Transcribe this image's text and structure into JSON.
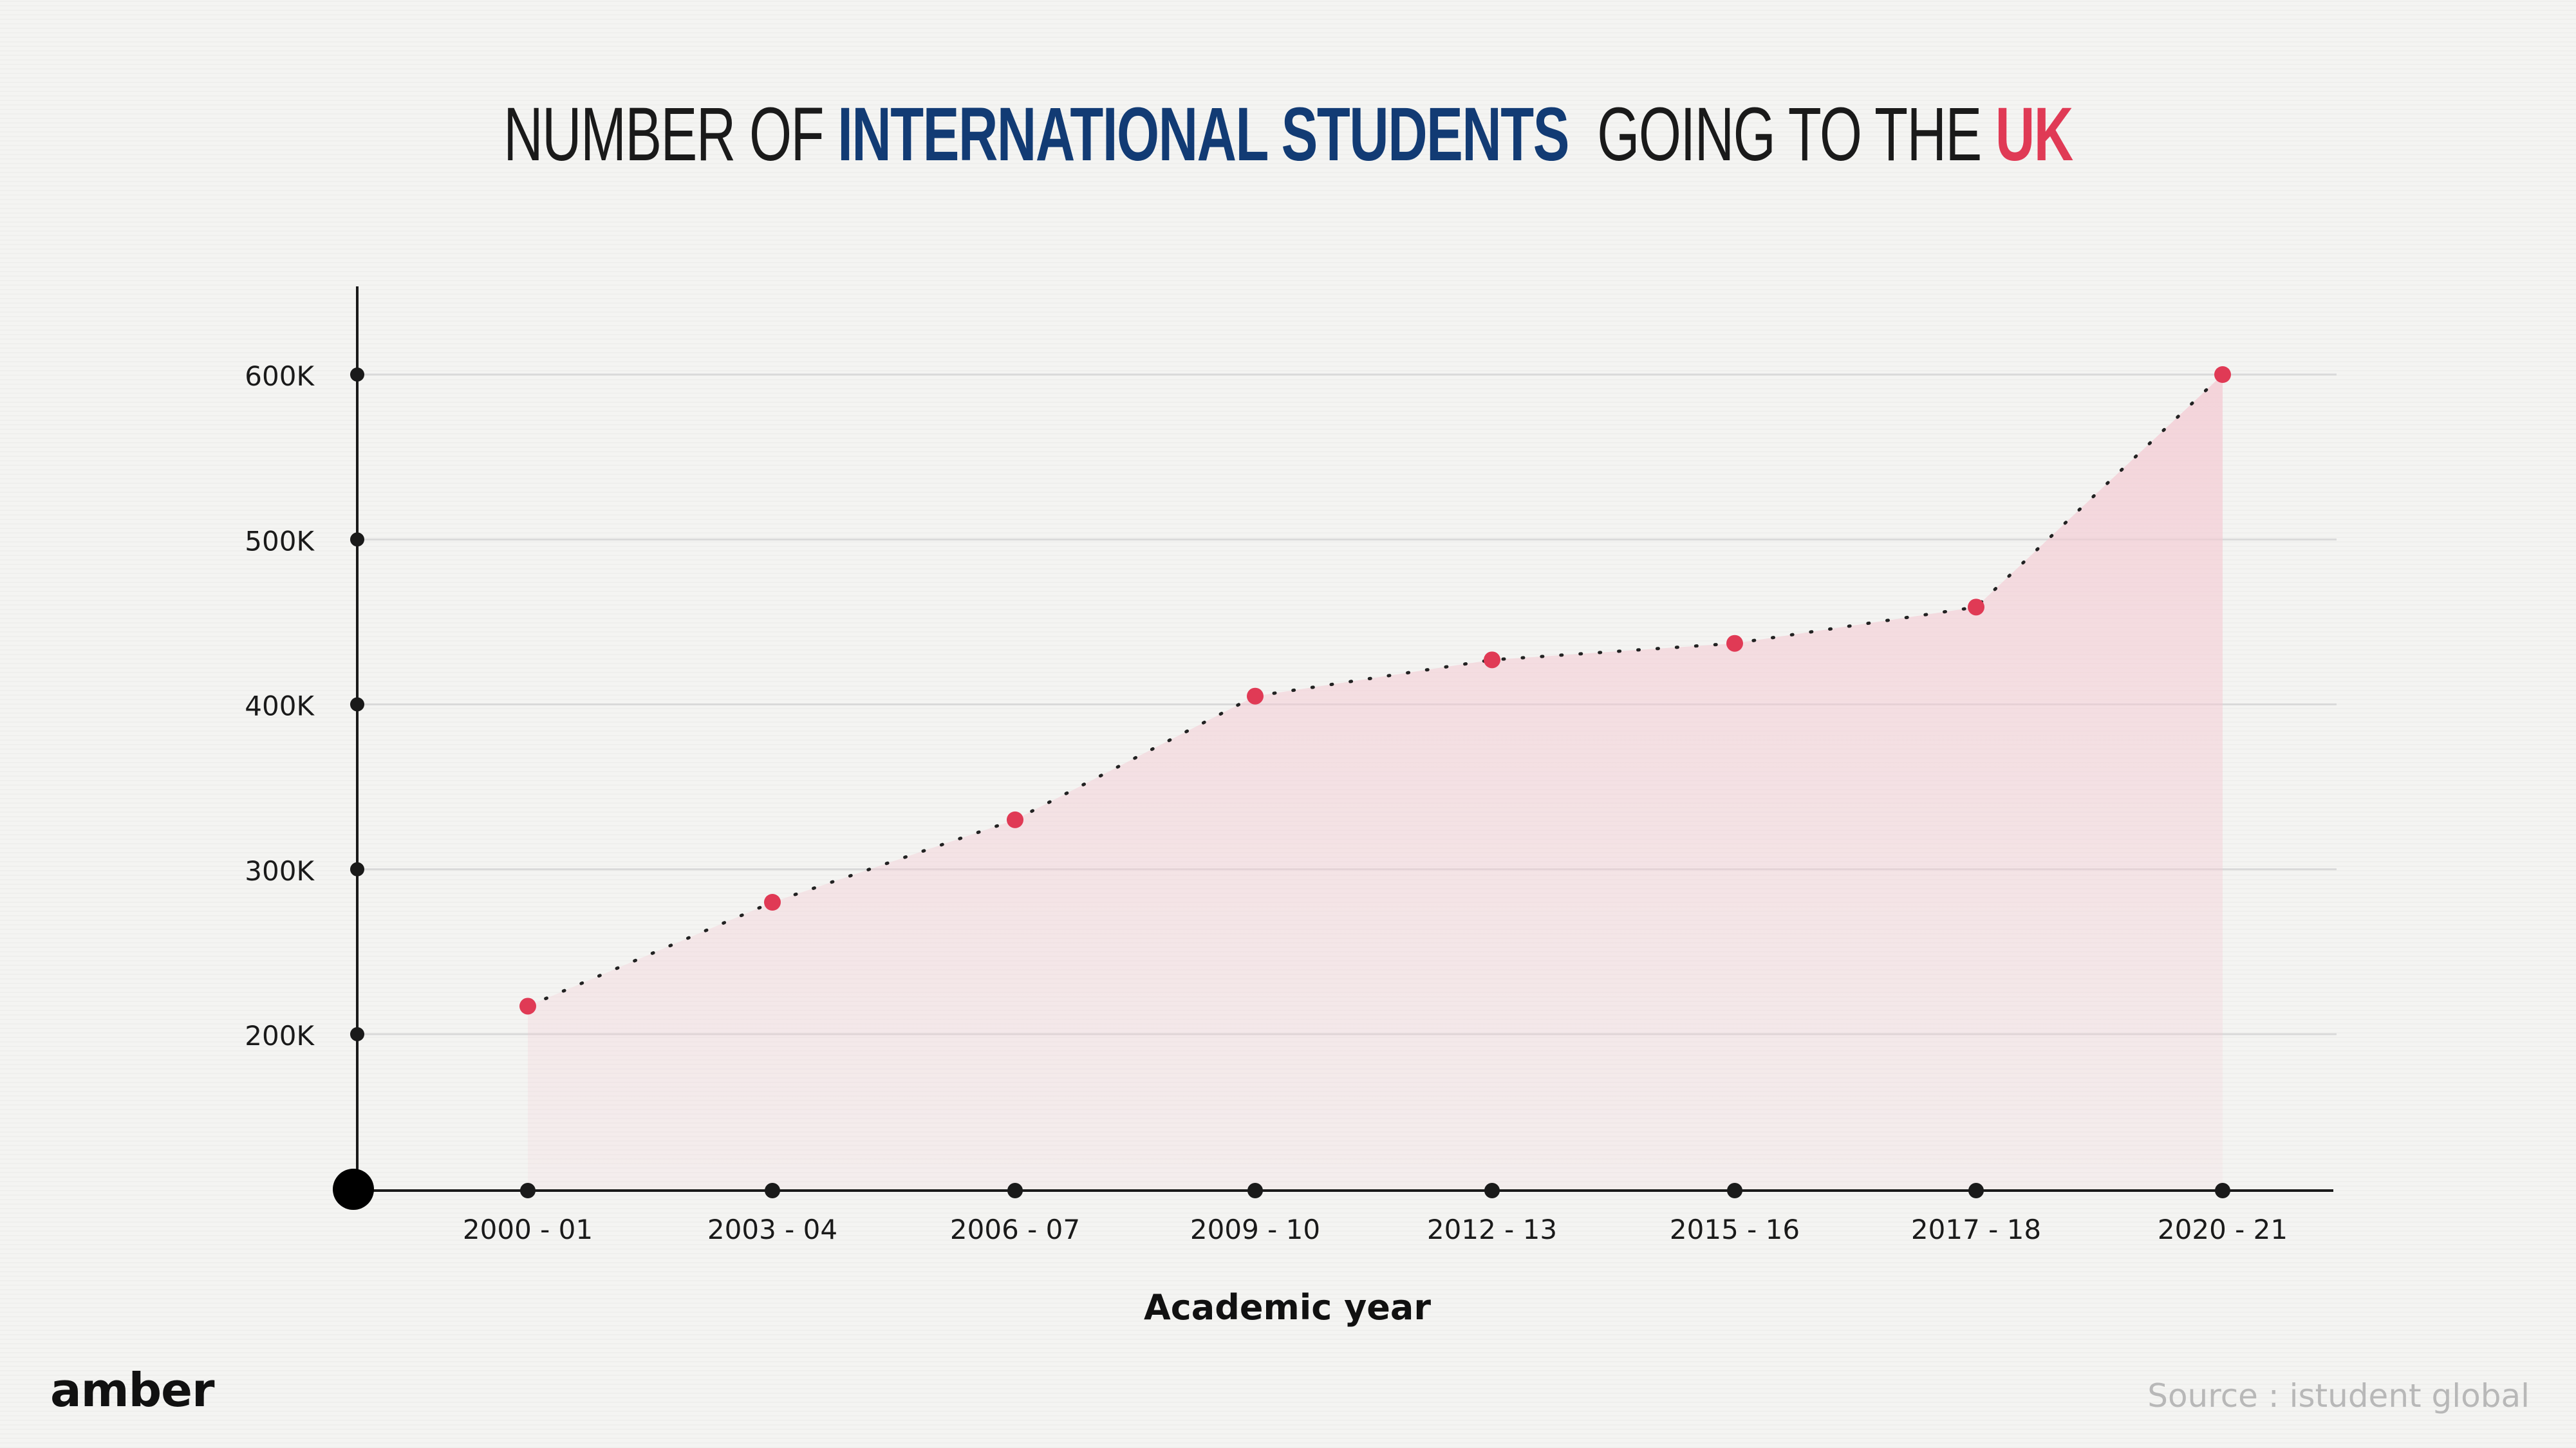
{
  "title": {
    "part1": "NUMBER OF ",
    "part2": "INTERNATIONAL STUDENTS",
    "part3": "  GOING TO THE ",
    "part4": "UK"
  },
  "brand": "amber",
  "source": "Source : istudent global",
  "colors": {
    "title_blue": "#123b74",
    "accent_red": "#e03a55",
    "area_fill": "#f4c9d2",
    "axis": "#1a1a1a",
    "grid": "#d9d9d9"
  },
  "chart_data": {
    "type": "area",
    "categories": [
      "2000 - 01",
      "2003 - 04",
      "2006 - 07",
      "2009 - 10",
      "2012 - 13",
      "2015 - 16",
      "2017 - 18",
      "2020 - 21"
    ],
    "values": [
      217000,
      280000,
      330000,
      405000,
      427000,
      437000,
      459000,
      600000
    ],
    "y_ticks": [
      200000,
      300000,
      400000,
      500000,
      600000
    ],
    "y_tick_labels": [
      "200K",
      "300K",
      "400K",
      "500K",
      "600K"
    ],
    "ylim": [
      105000,
      655000
    ],
    "xlabel": "Academic year",
    "ylabel": "",
    "grid": true,
    "legend": "none",
    "line_style": "dotted",
    "marker_color": "#e03a55"
  }
}
